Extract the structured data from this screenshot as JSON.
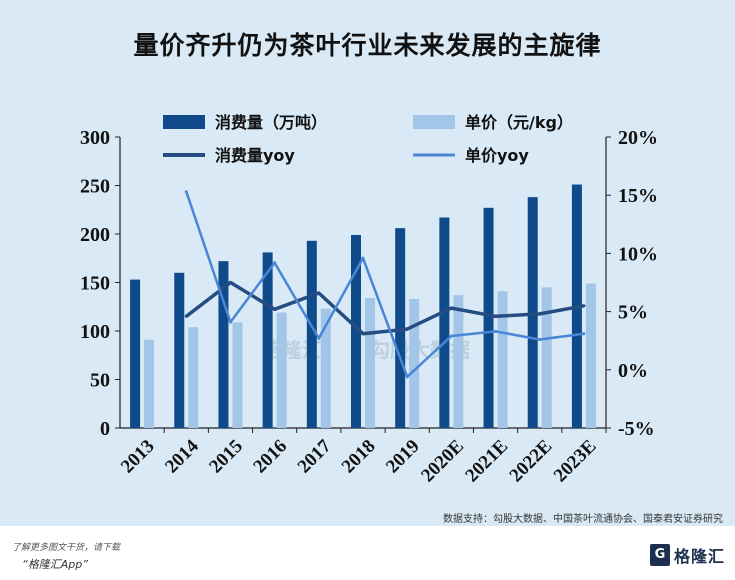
{
  "page": {
    "title": "量价齐升仍为茶叶行业未来发展的主旋律",
    "source": "数据支持：勾股大数据、中国茶叶流通协会、国泰君安证券研究",
    "footer_note": "了解更多图文干货，请下载",
    "footer_app": "“格隆汇App”",
    "logo_text": "格隆汇",
    "logo_mark": "G",
    "watermark_1": "格隆汇",
    "watermark_2": "勾股大数据"
  },
  "chart_data": {
    "type": "bar",
    "categories": [
      "2013",
      "2014",
      "2015",
      "2016",
      "2017",
      "2018",
      "2019",
      "2020E",
      "2021E",
      "2022E",
      "2023E"
    ],
    "series": [
      {
        "name": "消费量（万吨）",
        "type": "bar",
        "axis": "left",
        "color": "#0f4a8a",
        "values": [
          153,
          160,
          172,
          181,
          193,
          199,
          206,
          217,
          227,
          238,
          251
        ]
      },
      {
        "name": "单价（元/kg）",
        "type": "bar",
        "axis": "left",
        "color": "#a3c6e8",
        "values": [
          91,
          104,
          109,
          119,
          123,
          134,
          133,
          137,
          141,
          145,
          149
        ]
      },
      {
        "name": "消费量yoy",
        "type": "line",
        "axis": "right",
        "color": "#264d82",
        "values": [
          null,
          4.6,
          7.5,
          5.2,
          6.6,
          3.1,
          3.5,
          5.3,
          4.6,
          4.8,
          5.5
        ]
      },
      {
        "name": "单价yoy",
        "type": "line",
        "axis": "right",
        "color": "#4a86d6",
        "values": [
          null,
          15.3,
          4.1,
          9.2,
          2.7,
          9.6,
          -0.6,
          2.9,
          3.3,
          2.6,
          3.1
        ]
      }
    ],
    "left_axis": {
      "min": 0,
      "max": 300,
      "ticks": [
        "0",
        "50",
        "100",
        "150",
        "200",
        "250",
        "300"
      ]
    },
    "right_axis": {
      "min": -5,
      "max": 20,
      "ticks": [
        "-5%",
        "0%",
        "5%",
        "10%",
        "15%",
        "20%"
      ]
    },
    "legend_placement": "top",
    "grid": false
  }
}
